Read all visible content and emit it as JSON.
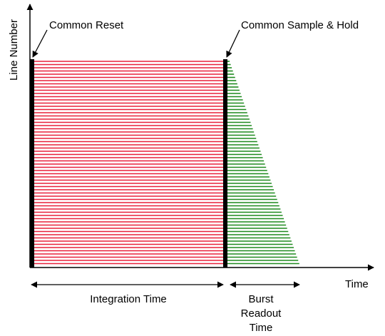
{
  "axes": {
    "y_label": "Line Number",
    "x_label": "Time"
  },
  "annotations": {
    "common_reset": "Common Reset",
    "common_sample_hold": "Common Sample & Hold"
  },
  "intervals": {
    "integration_time": "Integration Time",
    "burst_readout_time": [
      "Burst",
      "Readout",
      "Time"
    ]
  },
  "colors": {
    "integration_lines": "#e8203a",
    "readout_lines": "#1f8a1f",
    "markers": "#000000"
  }
}
